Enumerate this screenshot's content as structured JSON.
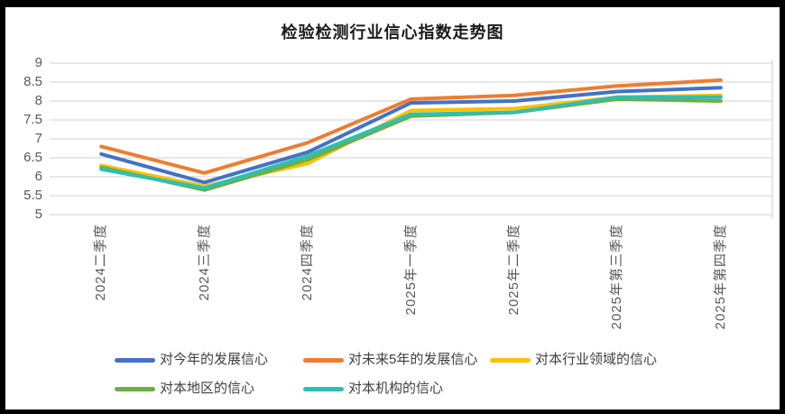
{
  "title": "检验检测行业信心指数走势图",
  "chart_data": {
    "type": "line",
    "title": "检验检测行业信心指数走势图",
    "categories": [
      "2024二季度",
      "2024三季度",
      "2024四季度",
      "2025年一季度",
      "2025年二季度",
      "2025年第三季度",
      "2025年第四季度"
    ],
    "series": [
      {
        "name": "对今年的发展信心",
        "color": "#4472C4",
        "values": [
          6.6,
          5.85,
          6.65,
          7.95,
          8.0,
          8.25,
          8.35
        ]
      },
      {
        "name": "对未来5年的发展信心",
        "color": "#ED7D31",
        "values": [
          6.8,
          6.1,
          6.9,
          8.05,
          8.15,
          8.4,
          8.55
        ]
      },
      {
        "name": "对本行业领域的信心",
        "color": "#FFC000",
        "values": [
          6.3,
          5.75,
          6.35,
          7.75,
          7.8,
          8.1,
          8.15
        ]
      },
      {
        "name": "对本地区的信心",
        "color": "#70AD47",
        "values": [
          6.25,
          5.65,
          6.45,
          7.6,
          7.7,
          8.05,
          8.0
        ]
      },
      {
        "name": "对本机构的信心",
        "color": "#2EBFB3",
        "values": [
          6.2,
          5.7,
          6.55,
          7.65,
          7.7,
          8.1,
          8.1
        ]
      }
    ],
    "ylim": [
      5,
      9
    ],
    "yticks": [
      "9",
      "8.5",
      "8",
      "7.5",
      "7",
      "6.5",
      "6",
      "5.5",
      "5"
    ],
    "xlabel": "",
    "ylabel": "",
    "grid": true,
    "gridline_color": "#D9D9D9",
    "axis_label_color": "#595959",
    "legend_position": "bottom",
    "legend_rows": [
      [
        0,
        1,
        2
      ],
      [
        3,
        4
      ]
    ],
    "line_width": 4
  },
  "frame": {
    "border_color": "#000000"
  }
}
